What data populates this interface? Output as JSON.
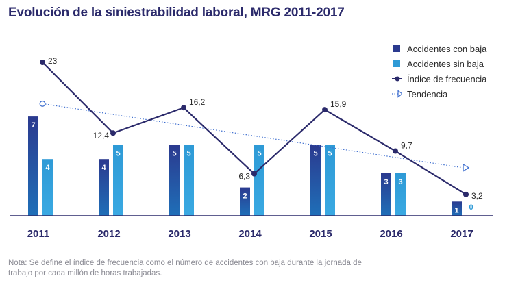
{
  "title": "Evolución de la siniestrabilidad laboral, MRG 2011-2017",
  "note": "Nota: Se define el índice de frecuencia como el número de accidentes con baja durante la jornada de trabajo por cada millón de horas trabajadas.",
  "colors": {
    "title": "#2b2a6b",
    "accidentes_con_baja": "#2b3a8f",
    "accidentes_sin_baja": "#2e9ad6",
    "indice": "#2b2a6b",
    "tendencia": "#3f6fcf"
  },
  "legend": [
    {
      "key": "con_baja",
      "label": "Accidentes con baja",
      "icon": "square-marker-icon"
    },
    {
      "key": "sin_baja",
      "label": "Accidentes sin baja",
      "icon": "square-marker-icon"
    },
    {
      "key": "indice",
      "label": "Índice de frecuencia",
      "icon": "line-dot-icon"
    },
    {
      "key": "tendencia",
      "label": "Tendencia",
      "icon": "dotted-triangle-icon"
    }
  ],
  "chart_data": {
    "type": "bar",
    "title": "Evolución de la siniestrabilidad laboral, MRG 2011-2017",
    "categories": [
      "2011",
      "2012",
      "2013",
      "2014",
      "2015",
      "2016",
      "2017"
    ],
    "series": [
      {
        "name": "Accidentes con baja",
        "type": "bar",
        "values": [
          7,
          4,
          5,
          2,
          5,
          3,
          1
        ],
        "labels": [
          "7",
          "4",
          "5",
          "2",
          "5",
          "3",
          "1"
        ]
      },
      {
        "name": "Accidentes sin baja",
        "type": "bar",
        "values": [
          4,
          5,
          5,
          5,
          5,
          3,
          0
        ],
        "labels": [
          "4",
          "5",
          "5",
          "5",
          "5",
          "3",
          "0"
        ]
      },
      {
        "name": "Índice de frecuencia",
        "type": "line",
        "values": [
          23,
          12.4,
          16.2,
          6.3,
          15.9,
          9.7,
          3.2
        ],
        "labels": [
          "23",
          "12,4",
          "16,2",
          "6,3",
          "15,9",
          "9,7",
          "3,2"
        ]
      },
      {
        "name": "Tendencia",
        "type": "trendline",
        "start": {
          "category": "2011",
          "value": 16.8
        },
        "end": {
          "category": "2017",
          "value": 7.2
        }
      }
    ],
    "bar_axis": {
      "min": 0,
      "max": 8.5
    },
    "line_axis": {
      "min": 0,
      "max": 26
    },
    "legend_position": "top-right",
    "grid": false
  }
}
